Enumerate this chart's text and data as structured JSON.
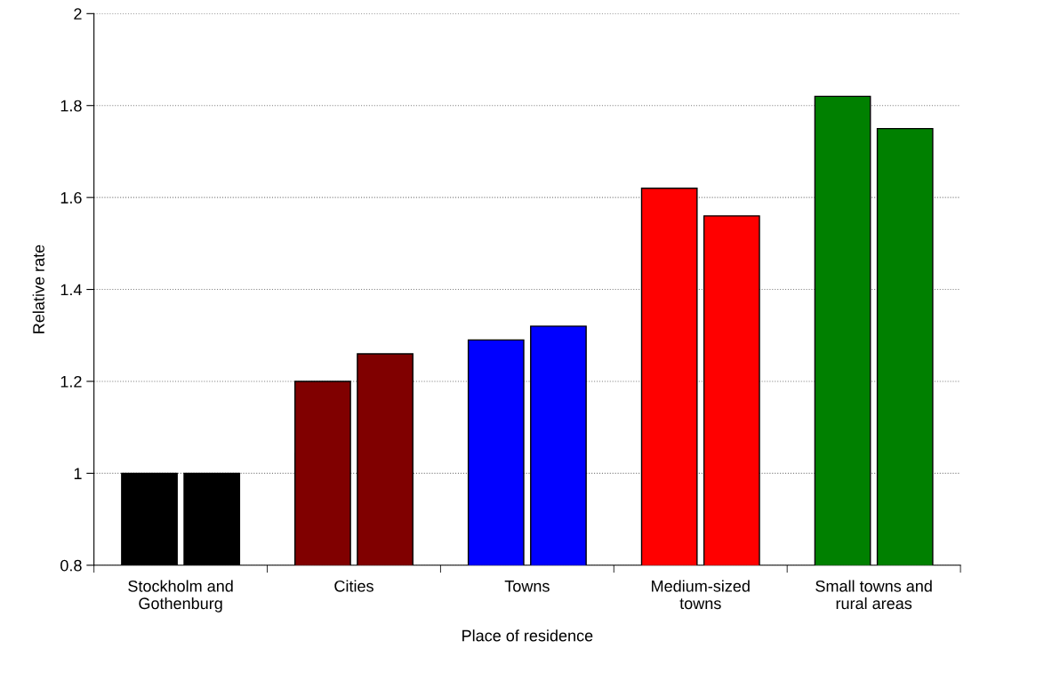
{
  "chart_data": {
    "type": "bar",
    "xlabel": "Place of residence",
    "ylabel": "Relative rate",
    "categories": [
      "Stockholm and\nGothenburg",
      "Cities",
      "Towns",
      "Medium-sized\ntowns",
      "Small towns and\nrural areas"
    ],
    "series": [
      {
        "colors": [
          "#000000",
          "#800000",
          "#0000ff",
          "#ff0000",
          "#008000"
        ],
        "values": [
          1.0,
          1.2,
          1.29,
          1.62,
          1.82
        ]
      },
      {
        "colors": [
          "#000000",
          "#800000",
          "#0000ff",
          "#ff0000",
          "#008000"
        ],
        "values": [
          1.0,
          1.26,
          1.32,
          1.56,
          1.75
        ]
      }
    ],
    "ylim": [
      0.8,
      2
    ],
    "yticks": [
      0.8,
      1,
      1.2,
      1.4,
      1.6,
      1.8,
      2
    ],
    "grid": "y"
  }
}
